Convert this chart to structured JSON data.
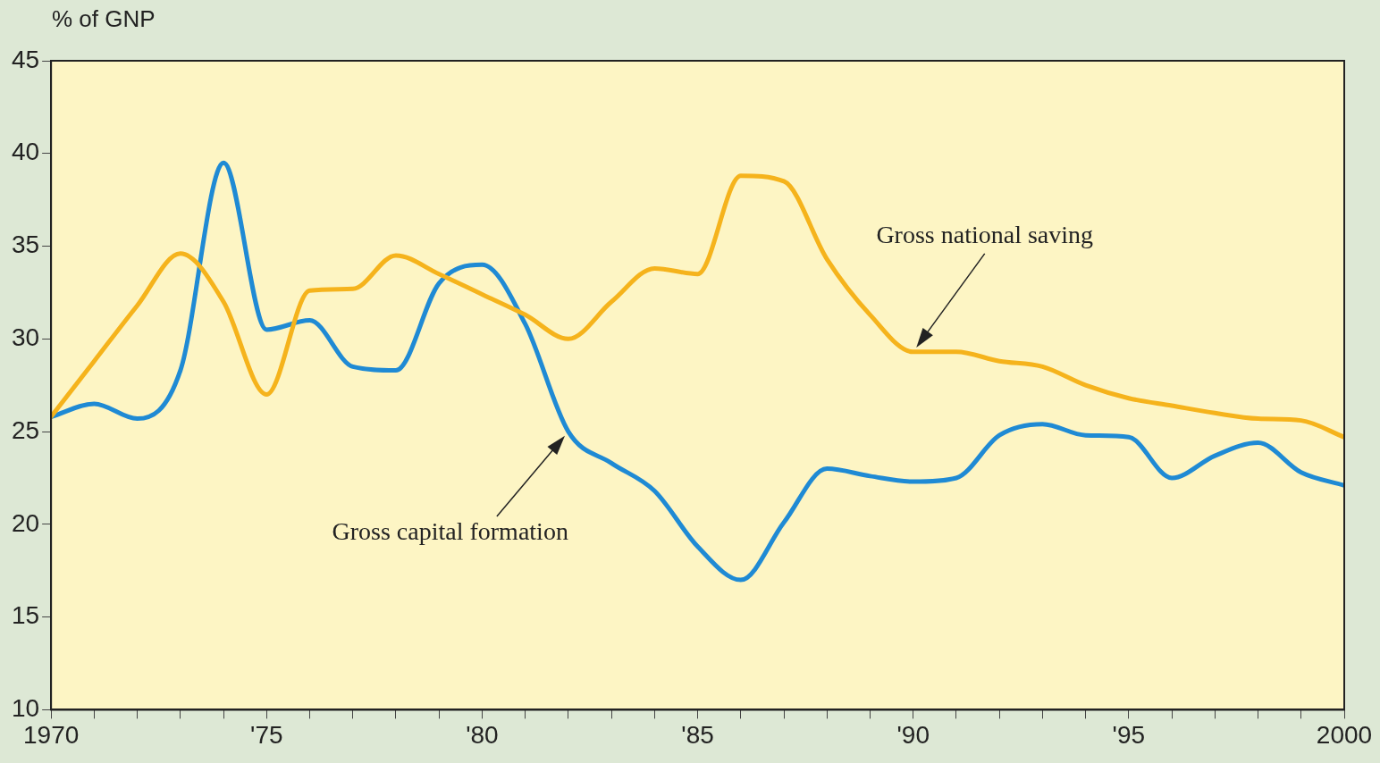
{
  "chart_data": {
    "type": "line",
    "ylabel": "% of GNP",
    "x": [
      1970,
      1971,
      1972,
      1973,
      1974,
      1975,
      1976,
      1977,
      1978,
      1979,
      1980,
      1981,
      1982,
      1983,
      1984,
      1985,
      1986,
      1987,
      1988,
      1989,
      1990,
      1991,
      1992,
      1993,
      1994,
      1995,
      1996,
      1997,
      1998,
      1999,
      2000
    ],
    "series": [
      {
        "name": "Gross national saving",
        "color": "#f5b31c",
        "values": [
          25.8,
          28.8,
          31.8,
          34.6,
          32.0,
          27.0,
          32.6,
          32.7,
          34.5,
          33.5,
          32.4,
          31.3,
          30.0,
          32.0,
          33.8,
          33.5,
          38.8,
          38.5,
          34.3,
          31.3,
          29.3,
          29.3,
          28.8,
          28.5,
          27.5,
          26.8,
          26.4,
          26.0,
          25.7,
          25.6,
          24.7
        ]
      },
      {
        "name": "Gross capital formation",
        "color": "#1f8ad4",
        "values": [
          25.8,
          26.5,
          25.7,
          28.3,
          39.5,
          30.5,
          31.0,
          28.5,
          28.3,
          33.0,
          34.0,
          30.8,
          25.0,
          23.3,
          21.8,
          18.8,
          17.0,
          20.1,
          23.0,
          22.6,
          22.3,
          22.5,
          24.8,
          25.4,
          24.8,
          24.7,
          22.5,
          23.7,
          24.4,
          22.8,
          22.1
        ]
      }
    ],
    "xlim": [
      1970,
      2000
    ],
    "xticks": [
      1970,
      {
        "value": 1971,
        "label": null
      },
      {
        "value": 1972,
        "label": null
      },
      {
        "value": 1973,
        "label": null
      },
      {
        "value": 1974,
        "label": null
      },
      {
        "value": 1975,
        "label": "'75"
      },
      {
        "value": 1976,
        "label": null
      },
      {
        "value": 1977,
        "label": null
      },
      {
        "value": 1978,
        "label": null
      },
      {
        "value": 1979,
        "label": null
      },
      {
        "value": 1980,
        "label": "'80"
      },
      {
        "value": 1981,
        "label": null
      },
      {
        "value": 1982,
        "label": null
      },
      {
        "value": 1983,
        "label": null
      },
      {
        "value": 1984,
        "label": null
      },
      {
        "value": 1985,
        "label": "'85"
      },
      {
        "value": 1986,
        "label": null
      },
      {
        "value": 1987,
        "label": null
      },
      {
        "value": 1988,
        "label": null
      },
      {
        "value": 1989,
        "label": null
      },
      {
        "value": 1990,
        "label": "'90"
      },
      {
        "value": 1991,
        "label": null
      },
      {
        "value": 1992,
        "label": null
      },
      {
        "value": 1993,
        "label": null
      },
      {
        "value": 1994,
        "label": null
      },
      {
        "value": 1995,
        "label": "'95"
      },
      {
        "value": 1996,
        "label": null
      },
      {
        "value": 1997,
        "label": null
      },
      {
        "value": 1998,
        "label": null
      },
      {
        "value": 1999,
        "label": null
      },
      2000
    ],
    "ylim": [
      10,
      45
    ],
    "yticks": [
      10,
      15,
      20,
      25,
      30,
      35,
      40,
      45
    ],
    "grid": false,
    "legend": false,
    "marker": "none",
    "line_style": "solid"
  }
}
